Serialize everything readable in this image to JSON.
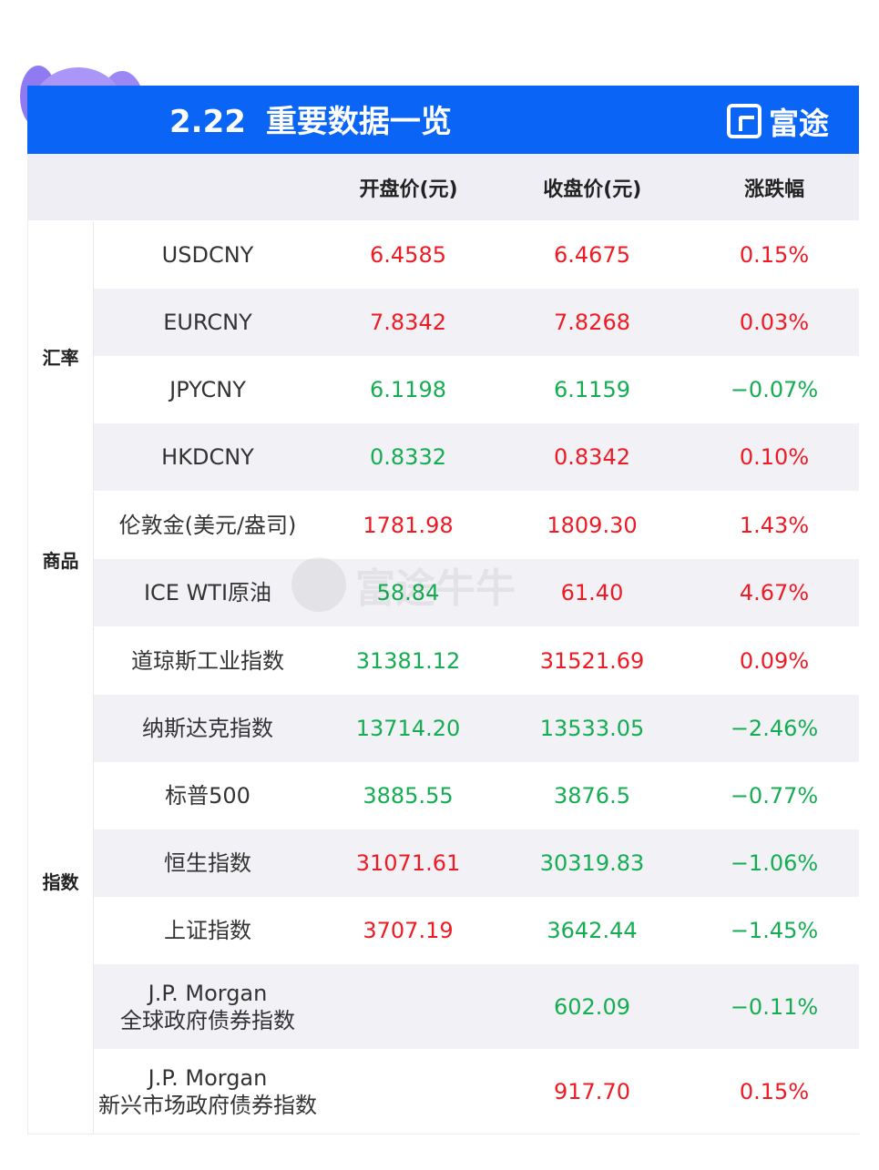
{
  "header": {
    "date": "2.22",
    "title": "重要数据一览",
    "brand": "富途"
  },
  "columns": {
    "open": "开盘价(元)",
    "close": "收盘价(元)",
    "change": "涨跌幅"
  },
  "groups": [
    {
      "label": "汇率",
      "rows": [
        {
          "name": "USDCNY",
          "name2": "",
          "open": "6.4585",
          "open_dir": "up",
          "close": "6.4675",
          "close_dir": "up",
          "change": "0.15%",
          "change_dir": "up"
        },
        {
          "name": "EURCNY",
          "name2": "",
          "open": "7.8342",
          "open_dir": "up",
          "close": "7.8268",
          "close_dir": "up",
          "change": "0.03%",
          "change_dir": "up"
        },
        {
          "name": "JPYCNY",
          "name2": "",
          "open": "6.1198",
          "open_dir": "down",
          "close": "6.1159",
          "close_dir": "down",
          "change": "−0.07%",
          "change_dir": "down"
        },
        {
          "name": "HKDCNY",
          "name2": "",
          "open": "0.8332",
          "open_dir": "down",
          "close": "0.8342",
          "close_dir": "up",
          "change": "0.10%",
          "change_dir": "up"
        }
      ]
    },
    {
      "label": "商品",
      "rows": [
        {
          "name": "伦敦金(美元/盎司)",
          "name2": "",
          "open": "1781.98",
          "open_dir": "up",
          "close": "1809.30",
          "close_dir": "up",
          "change": "1.43%",
          "change_dir": "up"
        },
        {
          "name": "ICE WTI原油",
          "name2": "",
          "open": "58.84",
          "open_dir": "down",
          "close": "61.40",
          "close_dir": "up",
          "change": "4.67%",
          "change_dir": "up"
        }
      ]
    },
    {
      "label": "指数",
      "rows": [
        {
          "name": "道琼斯工业指数",
          "name2": "",
          "open": "31381.12",
          "open_dir": "down",
          "close": "31521.69",
          "close_dir": "up",
          "change": "0.09%",
          "change_dir": "up"
        },
        {
          "name": "纳斯达克指数",
          "name2": "",
          "open": "13714.20",
          "open_dir": "down",
          "close": "13533.05",
          "close_dir": "down",
          "change": "−2.46%",
          "change_dir": "down"
        },
        {
          "name": "标普500",
          "name2": "",
          "open": "3885.55",
          "open_dir": "down",
          "close": "3876.5",
          "close_dir": "down",
          "change": "−0.77%",
          "change_dir": "down"
        },
        {
          "name": "恒生指数",
          "name2": "",
          "open": "31071.61",
          "open_dir": "up",
          "close": "30319.83",
          "close_dir": "down",
          "change": "−1.06%",
          "change_dir": "down"
        },
        {
          "name": "上证指数",
          "name2": "",
          "open": "3707.19",
          "open_dir": "up",
          "close": "3642.44",
          "close_dir": "down",
          "change": "−1.45%",
          "change_dir": "down"
        },
        {
          "name": "J.P. Morgan",
          "name2": "全球政府债券指数",
          "open": "",
          "open_dir": "down",
          "close": "602.09",
          "close_dir": "down",
          "change": "−0.11%",
          "change_dir": "down"
        },
        {
          "name": "J.P. Morgan",
          "name2": "新兴市场政府债券指数",
          "open": "",
          "open_dir": "up",
          "close": "917.70",
          "close_dir": "up",
          "change": "0.15%",
          "change_dir": "up"
        }
      ]
    }
  ],
  "watermark": "富途牛牛",
  "colors": {
    "banner": "#0a64f5",
    "up": "#ee1a24",
    "down": "#14ad51"
  }
}
